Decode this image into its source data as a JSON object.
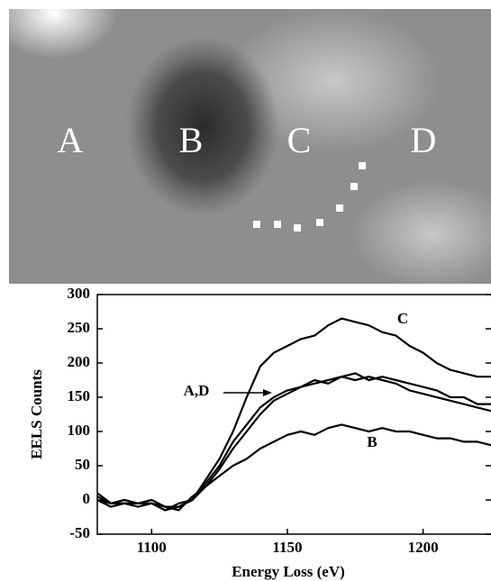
{
  "chart_data": {
    "type": "line",
    "xlabel": "Energy Loss (eV)",
    "ylabel": "EELS Counts",
    "x": [
      1080,
      1085,
      1090,
      1095,
      1100,
      1105,
      1110,
      1115,
      1120,
      1125,
      1130,
      1135,
      1140,
      1145,
      1150,
      1155,
      1160,
      1165,
      1170,
      1175,
      1180,
      1185,
      1190,
      1195,
      1200,
      1205,
      1210,
      1215,
      1220,
      1225
    ],
    "series": [
      {
        "name": "A",
        "color": "#000000",
        "values": [
          5,
          -5,
          -5,
          -5,
          -5,
          -10,
          -10,
          0,
          25,
          50,
          85,
          110,
          135,
          150,
          160,
          165,
          170,
          175,
          180,
          175,
          180,
          175,
          170,
          160,
          155,
          150,
          145,
          140,
          135,
          130
        ]
      },
      {
        "name": "B",
        "color": "#000000",
        "values": [
          0,
          -10,
          -5,
          -10,
          -5,
          -15,
          -5,
          0,
          20,
          35,
          50,
          60,
          75,
          85,
          95,
          100,
          95,
          105,
          110,
          105,
          100,
          105,
          100,
          100,
          95,
          90,
          90,
          85,
          85,
          80
        ]
      },
      {
        "name": "C",
        "color": "#000000",
        "values": [
          10,
          -5,
          -5,
          -5,
          -5,
          -15,
          -10,
          0,
          30,
          60,
          100,
          150,
          195,
          215,
          225,
          235,
          240,
          255,
          265,
          260,
          255,
          245,
          240,
          225,
          215,
          200,
          190,
          185,
          180,
          180
        ]
      },
      {
        "name": "D",
        "color": "#000000",
        "values": [
          0,
          -5,
          0,
          -5,
          0,
          -10,
          -15,
          5,
          20,
          45,
          75,
          100,
          125,
          145,
          155,
          165,
          175,
          170,
          180,
          185,
          175,
          180,
          175,
          170,
          165,
          160,
          150,
          150,
          140,
          140
        ]
      }
    ],
    "annotations": [
      "C",
      "A,D",
      "B"
    ],
    "xlim": [
      1080,
      1225
    ],
    "xticks": [
      1100,
      1150,
      1200
    ],
    "ylim": [
      -50,
      300
    ],
    "yticks": [
      -50,
      0,
      50,
      100,
      150,
      200,
      250,
      300
    ]
  }
}
